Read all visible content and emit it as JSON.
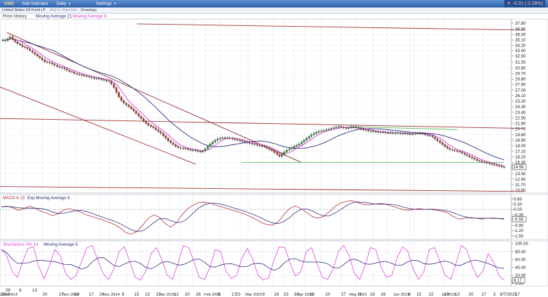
{
  "toolbar": {
    "logo": "USO",
    "add_indicator": "Add Indicator",
    "period": "Daily",
    "settings": "Settings",
    "change_arrow": "▼",
    "change_text": "-0.31 (-2.08%)"
  },
  "subbar": {
    "name": "United States Oil Fund LP",
    "add_watchlist": "Add to Watchlist",
    "drawings": "Drawings"
  },
  "chart_data": [
    {
      "type": "candlestick",
      "legend": [
        "Price History",
        "Moving Average 21",
        "Moving Average 6"
      ],
      "yticks": [
        "37.80",
        "36.90",
        "36.00",
        "35.10",
        "34.20",
        "33.40",
        "32.50",
        "31.50",
        "30.60",
        "29.70",
        "28.80",
        "27.90",
        "27.00",
        "26.10",
        "25.20",
        "24.30",
        "23.40",
        "22.50",
        "21.60",
        "20.70",
        "19.80",
        "18.90",
        "18.00",
        "17.10",
        "16.20",
        "15.30",
        "14.40",
        "13.50",
        "12.60",
        "11.70",
        "10.80"
      ],
      "last_price": "14.56",
      "closes": [
        35.1,
        35.0,
        35.3,
        35.6,
        35.2,
        34.8,
        34.5,
        34.3,
        34.0,
        33.9,
        33.7,
        33.4,
        33.1,
        32.8,
        32.5,
        32.2,
        31.9,
        31.6,
        31.5,
        31.4,
        31.2,
        31.0,
        30.8,
        30.7,
        30.6,
        30.4,
        30.2,
        30.0,
        29.9,
        29.7,
        29.6,
        29.5,
        29.4,
        29.3,
        29.2,
        29.1,
        29.0,
        28.9,
        28.9,
        28.8,
        28.7,
        28.6,
        28.5,
        28.4,
        28.0,
        27.4,
        26.6,
        25.9,
        25.3,
        24.9,
        24.6,
        24.3,
        24.0,
        23.6,
        23.2,
        22.8,
        22.4,
        22.0,
        21.6,
        21.3,
        21.1,
        20.9,
        20.6,
        20.3,
        20.0,
        19.6,
        19.2,
        18.8,
        18.5,
        18.2,
        17.9,
        17.7,
        17.6,
        17.6,
        17.5,
        17.4,
        17.3,
        17.3,
        17.2,
        17.1,
        17.0,
        17.2,
        17.5,
        17.9,
        18.3,
        18.6,
        18.9,
        19.1,
        19.2,
        19.3,
        19.3,
        19.3,
        19.2,
        19.1,
        19.0,
        18.9,
        18.8,
        18.7,
        18.6,
        18.5,
        18.4,
        18.3,
        18.2,
        18.1,
        18.0,
        17.9,
        17.8,
        17.6,
        17.4,
        17.2,
        16.9,
        16.6,
        16.3,
        16.6,
        17.0,
        17.3,
        17.5,
        17.7,
        17.9,
        18.1,
        18.3,
        18.6,
        18.9,
        19.2,
        19.5,
        19.8,
        20.0,
        20.2,
        20.3,
        20.4,
        20.5,
        20.6,
        20.7,
        20.8,
        20.9,
        21.0,
        21.1,
        21.0,
        20.9,
        20.8,
        20.9,
        21.0,
        21.0,
        20.9,
        20.8,
        20.7,
        20.6,
        20.5,
        20.4,
        20.4,
        20.3,
        20.3,
        20.2,
        20.2,
        20.2,
        20.1,
        20.1,
        20.1,
        20.0,
        20.1,
        20.1,
        20.0,
        20.0,
        20.0,
        19.9,
        19.9,
        19.9,
        20.0,
        20.0,
        20.0,
        19.9,
        19.8,
        19.7,
        19.6,
        19.4,
        19.1,
        18.8,
        18.5,
        18.2,
        17.9,
        17.6,
        17.4,
        17.3,
        17.2,
        17.1,
        17.0,
        16.8,
        16.6,
        16.4,
        16.2,
        16.0,
        15.8,
        15.6,
        15.5,
        15.4,
        15.3,
        15.2,
        15.1,
        15.0,
        14.9,
        14.8,
        14.7,
        14.6,
        14.56
      ],
      "annotations": [
        "Apr 2015",
        "Feb 2015"
      ],
      "trendlines": "descending channel Oct–Feb; horizontal support near 15.3; resistance near 21.0"
    },
    {
      "type": "line",
      "legend": [
        "MACD 6 13",
        "Exp Moving Average 9"
      ],
      "yticks": [
        "0.60",
        "0.30",
        "0.00",
        "-0.30",
        "-0.55",
        "-0.90",
        "-1.20",
        "-1.50"
      ],
      "last_value": "-0.55",
      "zero_line": true,
      "macd_points": [
        0.15,
        0.18,
        0.1,
        -0.05,
        0.05,
        0.18,
        0.08,
        -0.1,
        -0.2,
        -0.35,
        -0.25,
        -0.05,
        0.05,
        -0.05,
        -0.15,
        -0.3,
        -0.4,
        -0.5,
        -0.6,
        -0.72,
        -0.85,
        -1.05,
        -1.3,
        -1.4,
        -1.25,
        -0.9,
        -0.5,
        -0.3,
        -0.45,
        -0.8,
        -1.0,
        -0.75,
        -0.3,
        0.05,
        0.25,
        0.4,
        0.4,
        0.35,
        0.25,
        0.15,
        0.05,
        -0.05,
        -0.15,
        -0.25,
        -0.4,
        -0.55,
        -0.75,
        -0.85,
        -0.9,
        -0.7,
        -0.3,
        0.05,
        0.2,
        0.05,
        -0.15,
        -0.4,
        -0.5,
        -0.4,
        -0.15,
        0.15,
        0.35,
        0.45,
        0.5,
        0.4,
        0.3,
        0.25,
        0.3,
        0.35,
        0.3,
        0.2,
        0.1,
        0.0,
        -0.05,
        0.0,
        0.05,
        0.0,
        0.0,
        -0.05,
        -0.1,
        -0.2,
        -0.4,
        -0.55,
        -0.5,
        -0.45,
        -0.5,
        -0.55,
        -0.5,
        -0.48,
        -0.52,
        -0.55
      ]
    },
    {
      "type": "line",
      "legend": [
        "Stochastics %K 14",
        "Moving Average 5"
      ],
      "yticks": [
        "100.00",
        "80.00",
        "60.00",
        "40.00",
        "20.00",
        "0.00"
      ],
      "last_value": "8.17",
      "stoch_points": [
        85,
        70,
        30,
        15,
        55,
        88,
        92,
        40,
        12,
        45,
        85,
        70,
        25,
        10,
        20,
        55,
        90,
        95,
        60,
        25,
        10,
        35,
        80,
        92,
        55,
        15,
        8,
        30,
        75,
        90,
        60,
        20,
        10,
        50,
        95,
        90,
        55,
        15,
        10,
        40,
        85,
        80,
        30,
        12,
        20,
        65,
        88,
        60,
        20,
        8,
        15,
        60,
        92,
        90,
        50,
        18,
        30,
        80,
        90,
        50,
        15,
        10,
        35,
        80,
        95,
        70,
        25,
        10,
        45,
        90,
        85,
        40,
        15,
        20,
        65,
        92,
        80,
        35,
        10,
        30,
        85,
        90,
        55,
        20,
        10,
        50,
        95,
        85,
        45,
        15,
        30,
        75,
        55,
        20,
        8
      ]
    },
    {
      "type": "axis",
      "x_labels": [
        "2014",
        "Oct 2014",
        "20",
        "27",
        "Nov 2014",
        "10",
        "17",
        "24",
        "Dec 2014",
        "8",
        "15",
        "22",
        "29",
        "Jan 2015",
        "12",
        "20",
        "26",
        "Feb 2015",
        "9",
        "17",
        "23",
        "Mar 2015",
        "9",
        "16",
        "23",
        "30",
        "Apr 2015",
        "13",
        "20",
        "27",
        "May 2015",
        "11",
        "18",
        "26",
        "Jun 2015",
        "8",
        "15",
        "22",
        "29",
        "Jul 2015",
        "13",
        "20",
        "27",
        "3",
        "8/7/2015",
        "17"
      ],
      "x_top": [
        "29",
        "6",
        "13"
      ]
    }
  ]
}
